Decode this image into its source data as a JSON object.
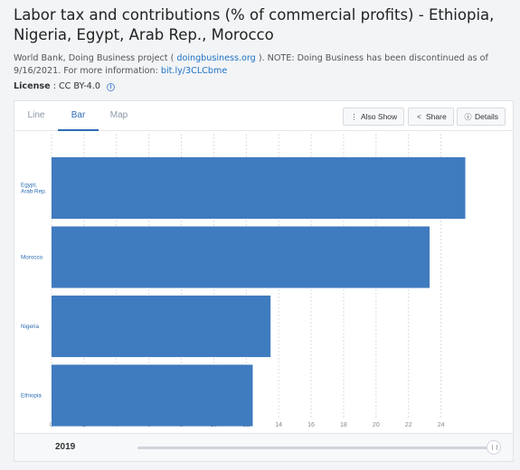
{
  "header": {
    "title": "Labor tax and contributions (% of commercial profits) - Ethiopia, Nigeria, Egypt, Arab Rep., Morocco",
    "source_prefix": "World Bank, Doing Business project ( ",
    "source_link": "doingbusiness.org",
    "source_suffix": " ). NOTE: Doing Business has been discontinued as of 9/16/2021. For more information: ",
    "source_link2": "bit.ly/3CLCbme",
    "license_label": "License",
    "license_value": " : CC BY-4.0 ",
    "info_glyph": "i"
  },
  "tabs": [
    {
      "label": "Line",
      "active": false
    },
    {
      "label": "Bar",
      "active": true
    },
    {
      "label": "Map",
      "active": false
    }
  ],
  "toolbar": {
    "also_show": "Also Show",
    "share": "Share",
    "details": "Details",
    "also_show_icon": "vertical-dots-icon",
    "share_icon": "share-icon",
    "details_icon": "info-icon"
  },
  "timeline": {
    "year": "2019",
    "position": 1.0
  },
  "colors": {
    "bar": "#3f7bbf",
    "grid": "#d8dde2",
    "axis_text": "#888888",
    "category_text": "#2b6cb5"
  },
  "chart_data": {
    "type": "bar",
    "orientation": "horizontal",
    "categories": [
      "Egypt, Arab Rep.",
      "Morocco",
      "Nigeria",
      "Ethiopia"
    ],
    "category_lines": [
      [
        "Egypt,",
        "Arab Rep."
      ],
      [
        "Morocco"
      ],
      [
        "Nigeria"
      ],
      [
        "Ethiopia"
      ]
    ],
    "values": [
      25.5,
      23.3,
      13.5,
      12.4
    ],
    "xlim": [
      0,
      27.2
    ],
    "xticks": [
      0,
      2,
      4,
      6,
      8,
      10,
      12,
      14,
      16,
      18,
      20,
      22,
      24
    ],
    "grid": true,
    "title": "",
    "xlabel": "",
    "ylabel": ""
  }
}
